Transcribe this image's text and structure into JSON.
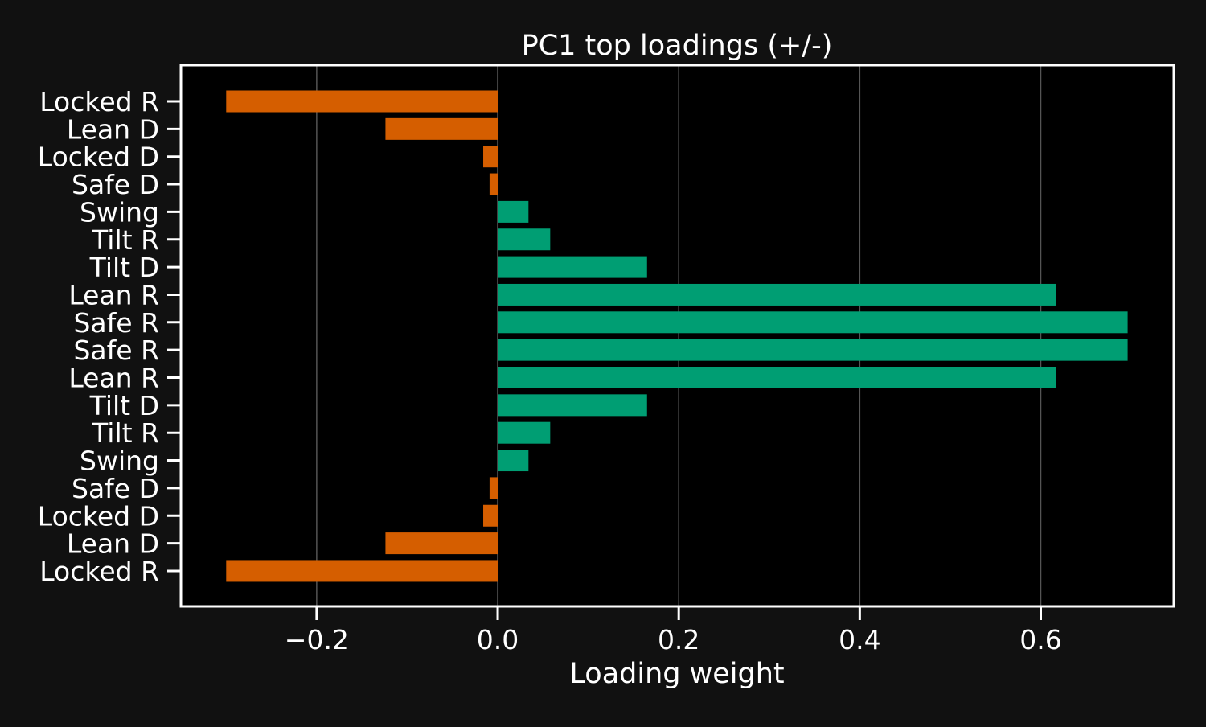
{
  "chart_data": {
    "type": "bar",
    "orientation": "horizontal",
    "title": "PC1 top loadings (+/-)",
    "xlabel": "Loading weight",
    "ylabel": "",
    "categories": [
      "Locked R",
      "Lean D",
      "Locked D",
      "Safe D",
      "Swing",
      "Tilt R",
      "Tilt D",
      "Lean R",
      "Safe R",
      "Safe R",
      "Lean R",
      "Tilt D",
      "Tilt R",
      "Swing",
      "Safe D",
      "Locked D",
      "Lean D",
      "Locked R"
    ],
    "values": [
      -0.3,
      -0.124,
      -0.016,
      -0.009,
      0.034,
      0.058,
      0.165,
      0.617,
      0.696,
      0.696,
      0.617,
      0.165,
      0.058,
      0.034,
      -0.009,
      -0.016,
      -0.124,
      -0.3
    ],
    "xlim": [
      -0.35,
      0.747
    ],
    "xticks": [
      -0.2,
      0.0,
      0.2,
      0.4,
      0.6
    ],
    "xtick_labels": [
      "−0.2",
      "0.0",
      "0.2",
      "0.4",
      "0.6"
    ],
    "grid": "x-axis vertical lines",
    "legend": "none",
    "colors": {
      "positive": "#009e73",
      "negative": "#d55e00",
      "plot_background": "#000000",
      "figure_background": "#111111",
      "axes": "#ffffff",
      "grid": "#555555",
      "zero_line": "#444444"
    }
  }
}
